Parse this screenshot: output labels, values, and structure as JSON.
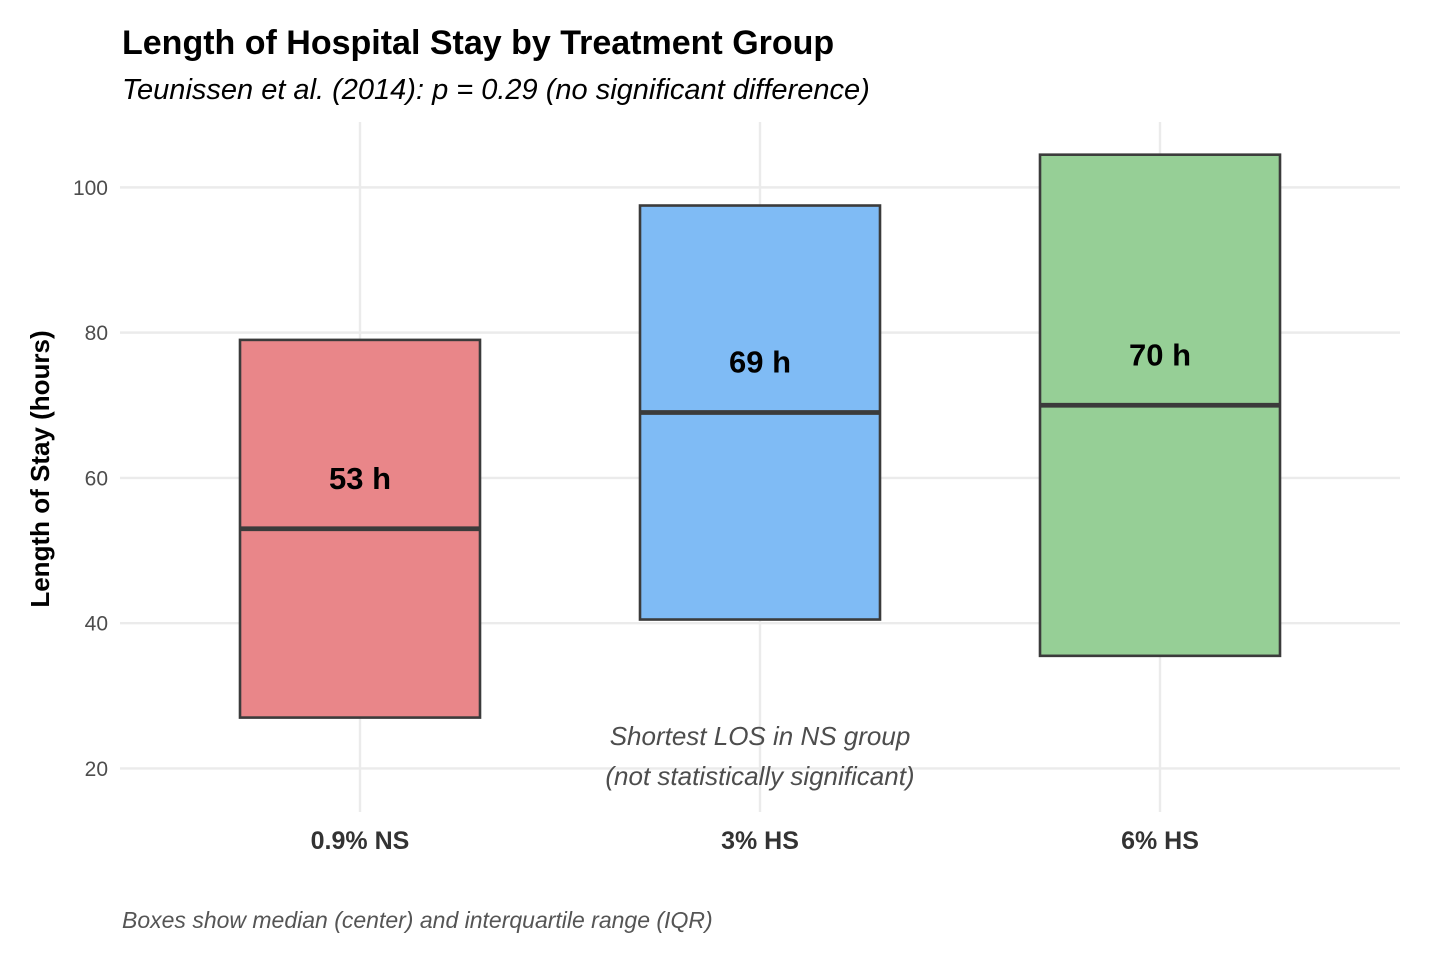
{
  "chart_data": {
    "type": "box",
    "title": "Length of Hospital Stay by Treatment Group",
    "subtitle": "Teunissen et al. (2014): p = 0.29 (no significant difference)",
    "xlabel": "",
    "ylabel": "Length of Stay (hours)",
    "ylim": [
      14,
      109
    ],
    "yticks": [
      20,
      40,
      60,
      80,
      100
    ],
    "grid": true,
    "legend": "none",
    "categories": [
      "0.9% NS",
      "3% HS",
      "6% HS"
    ],
    "series": [
      {
        "name": "0.9% NS",
        "color": "#e98689",
        "q1": 27,
        "median": 53,
        "q3": 79,
        "label": "53 h",
        "label_value": 60
      },
      {
        "name": "3% HS",
        "color": "#7fbbf5",
        "q1": 40.5,
        "median": 69,
        "q3": 97.5,
        "label": "69 h",
        "label_value": 76
      },
      {
        "name": "6% HS",
        "color": "#96cf96",
        "q1": 35.5,
        "median": 70,
        "q3": 104.5,
        "label": "70 h",
        "label_value": 77
      }
    ],
    "annotation": {
      "lines": [
        "Shortest LOS in NS group",
        "(not statistically significant)"
      ],
      "category_index": 1,
      "value": 22
    },
    "caption": "Boxes show median (center) and interquartile range (IQR)"
  }
}
